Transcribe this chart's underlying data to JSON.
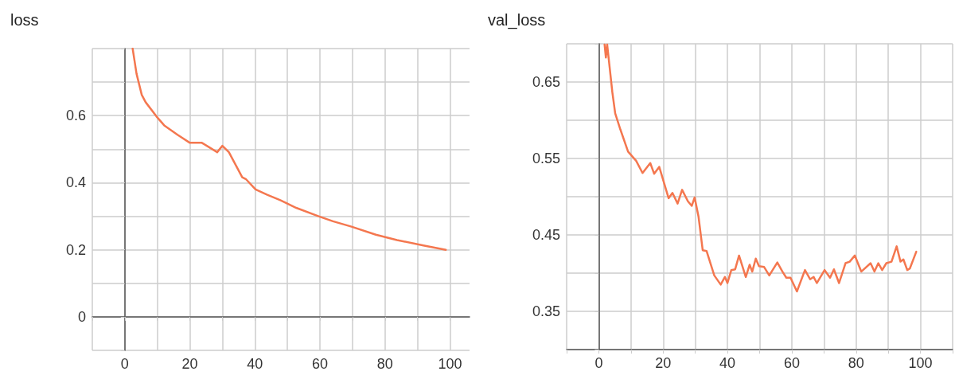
{
  "chart_data": [
    {
      "type": "line",
      "title": "loss",
      "xlim": [
        -10,
        106
      ],
      "ylim": [
        -0.1,
        0.8
      ],
      "xticks": [
        {
          "value": -10,
          "label": null
        },
        0,
        {
          "value": 10,
          "label": null
        },
        20,
        {
          "value": 30,
          "label": null
        },
        40,
        {
          "value": 50,
          "label": null
        },
        60,
        {
          "value": 70,
          "label": null
        },
        80,
        {
          "value": 90,
          "label": null
        },
        100
      ],
      "yticks": [
        {
          "value": -0.1,
          "label": null
        },
        0,
        {
          "value": 0.1,
          "label": null
        },
        0.2,
        {
          "value": 0.3,
          "label": null
        },
        0.4,
        {
          "value": 0.5,
          "label": null
        },
        0.6,
        {
          "value": 0.7,
          "label": null
        },
        {
          "value": 0.8,
          "label": null
        }
      ],
      "grid": true,
      "series": [
        {
          "color": "#f4774f",
          "x": [
            2.4,
            3.6,
            5.2,
            6.4,
            9.7,
            12.1,
            16.2,
            20,
            23.7,
            28.4,
            30,
            32,
            36.1,
            37.3,
            40.2,
            43.8,
            47.8,
            52.7,
            59.6,
            64,
            69.7,
            77.2,
            83.7,
            91.8,
            98.7
          ],
          "values": [
            0.8,
            0.725,
            0.662,
            0.64,
            0.598,
            0.571,
            0.543,
            0.519,
            0.519,
            0.491,
            0.51,
            0.491,
            0.416,
            0.41,
            0.38,
            0.364,
            0.348,
            0.325,
            0.3,
            0.285,
            0.269,
            0.245,
            0.229,
            0.213,
            0.2
          ]
        }
      ]
    },
    {
      "type": "line",
      "title": "val_loss",
      "xlim": [
        -10,
        110
      ],
      "ylim": [
        0.3,
        0.7
      ],
      "xticks": [
        {
          "value": -10,
          "label": null
        },
        0,
        {
          "value": 10,
          "label": null
        },
        20,
        {
          "value": 30,
          "label": null
        },
        40,
        {
          "value": 50,
          "label": null
        },
        60,
        {
          "value": 70,
          "label": null
        },
        80,
        {
          "value": 90,
          "label": null
        },
        100,
        {
          "value": 110,
          "label": null
        }
      ],
      "yticks": [
        {
          "value": 0.3,
          "label": null
        },
        0.35,
        {
          "value": 0.4,
          "label": null
        },
        0.45,
        {
          "value": 0.5,
          "label": null
        },
        0.55,
        {
          "value": 0.6,
          "label": null
        },
        0.65,
        {
          "value": 0.7,
          "label": null
        }
      ],
      "grid": true,
      "series": [
        {
          "color": "#f4774f",
          "x": [
            1.8,
            2.2,
            2.6,
            4.2,
            5.1,
            6.7,
            9.1,
            11.6,
            13.6,
            16,
            17.2,
            18.8,
            21.7,
            22.9,
            24.5,
            25.9,
            27.7,
            28.9,
            29.8,
            31,
            32.3,
            33.5,
            35.9,
            37.9,
            39.2,
            40,
            41.2,
            42.4,
            43.6,
            45.7,
            46.9,
            47.7,
            48.8,
            49.8,
            51.4,
            53,
            55.5,
            57.1,
            58.3,
            59.6,
            61.6,
            64.1,
            65.7,
            66.8,
            67.8,
            70.2,
            71.9,
            73.1,
            74.7,
            76.7,
            78,
            79.6,
            81.6,
            84.5,
            85.7,
            86.9,
            88.1,
            89.4,
            91,
            92.6,
            93.8,
            94.7,
            95.9,
            96.7,
            98.7
          ],
          "values": [
            0.699,
            0.682,
            0.699,
            0.637,
            0.609,
            0.588,
            0.559,
            0.547,
            0.531,
            0.544,
            0.53,
            0.539,
            0.498,
            0.505,
            0.491,
            0.509,
            0.494,
            0.488,
            0.499,
            0.474,
            0.43,
            0.429,
            0.397,
            0.385,
            0.395,
            0.387,
            0.404,
            0.405,
            0.423,
            0.395,
            0.411,
            0.402,
            0.419,
            0.409,
            0.408,
            0.397,
            0.414,
            0.402,
            0.394,
            0.394,
            0.376,
            0.404,
            0.392,
            0.395,
            0.387,
            0.404,
            0.394,
            0.405,
            0.387,
            0.413,
            0.415,
            0.423,
            0.402,
            0.413,
            0.402,
            0.413,
            0.404,
            0.413,
            0.415,
            0.435,
            0.415,
            0.418,
            0.404,
            0.406,
            0.428
          ]
        }
      ]
    }
  ]
}
